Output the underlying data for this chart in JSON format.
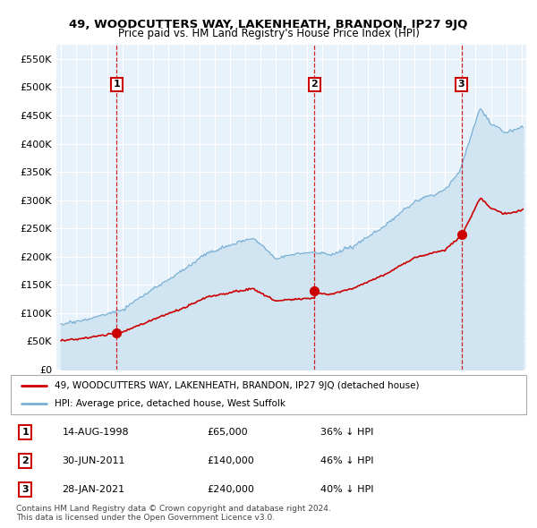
{
  "title": "49, WOODCUTTERS WAY, LAKENHEATH, BRANDON, IP27 9JQ",
  "subtitle": "Price paid vs. HM Land Registry's House Price Index (HPI)",
  "legend_line1": "49, WOODCUTTERS WAY, LAKENHEATH, BRANDON, IP27 9JQ (detached house)",
  "legend_line2": "HPI: Average price, detached house, West Suffolk",
  "footer1": "Contains HM Land Registry data © Crown copyright and database right 2024.",
  "footer2": "This data is licensed under the Open Government Licence v3.0.",
  "sales": [
    {
      "num": 1,
      "date": "14-AUG-1998",
      "price": 65000,
      "pct": "36%",
      "dir": "↓",
      "year": 1998.62
    },
    {
      "num": 2,
      "date": "30-JUN-2011",
      "price": 140000,
      "pct": "46%",
      "dir": "↓",
      "year": 2011.5
    },
    {
      "num": 3,
      "date": "28-JAN-2021",
      "price": 240000,
      "pct": "40%",
      "dir": "↓",
      "year": 2021.08
    }
  ],
  "ylim": [
    0,
    575000
  ],
  "yticks": [
    0,
    50000,
    100000,
    150000,
    200000,
    250000,
    300000,
    350000,
    400000,
    450000,
    500000,
    550000
  ],
  "ytick_labels": [
    "£0",
    "£50K",
    "£100K",
    "£150K",
    "£200K",
    "£250K",
    "£300K",
    "£350K",
    "£400K",
    "£450K",
    "£500K",
    "£550K"
  ],
  "hpi_line_color": "#7ab0d4",
  "hpi_fill_color": "#d0e4f2",
  "price_color": "#cc0000",
  "plot_bg_color": "#e8f2fa",
  "grid_color": "#ffffff",
  "vline_color": "#cc0000"
}
